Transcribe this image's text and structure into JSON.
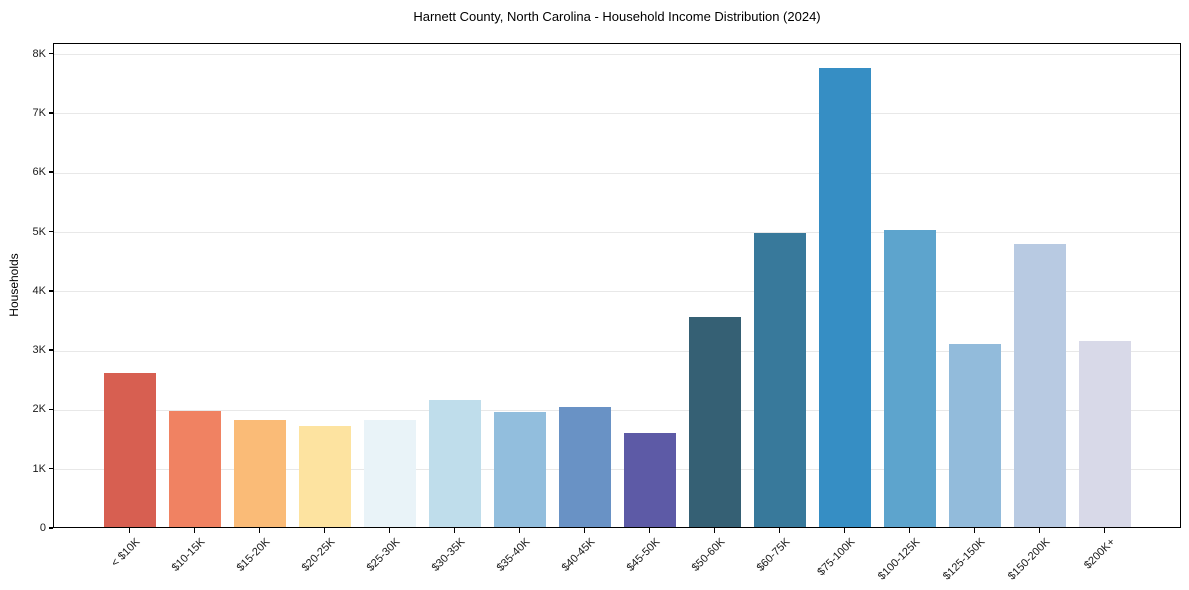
{
  "chart_data": {
    "type": "bar",
    "title": "Harnett County, North Carolina - Household Income Distribution (2024)",
    "xlabel": "",
    "ylabel": "Households",
    "categories": [
      "< $10K",
      "$10-15K",
      "$15-20K",
      "$20-25K",
      "$25-30K",
      "$30-35K",
      "$35-40K",
      "$40-45K",
      "$45-50K",
      "$50-60K",
      "$60-75K",
      "$75-100K",
      "$100-125K",
      "$125-150K",
      "$150-200K",
      "$200K+"
    ],
    "values": [
      2590,
      1950,
      1810,
      1700,
      1810,
      2140,
      1940,
      2030,
      1590,
      3550,
      4950,
      7740,
      5010,
      3080,
      4770,
      3130
    ],
    "bar_colors": [
      "#d75f51",
      "#f08262",
      "#fabb77",
      "#fde3a0",
      "#e9f3f8",
      "#bfddeb",
      "#92bedd",
      "#6992c5",
      "#5d5aa6",
      "#356074",
      "#38799b",
      "#368ec4",
      "#5da4cd",
      "#92bbdb",
      "#b8cae2",
      "#d8d9e8"
    ],
    "ylim": [
      0,
      8000
    ],
    "ytick_values": [
      0,
      1000,
      2000,
      3000,
      4000,
      5000,
      6000,
      7000,
      8000
    ],
    "ytick_labels": [
      "0",
      "1K",
      "2K",
      "3K",
      "4K",
      "5K",
      "6K",
      "7K",
      "8K"
    ],
    "grid": "horizontal",
    "legend": "none",
    "x_tick_rotation": 45
  },
  "colors": {
    "background": "#ffffff",
    "grid": "#e8e8e8",
    "spine": "#000000",
    "text": "#1a1a1a"
  }
}
